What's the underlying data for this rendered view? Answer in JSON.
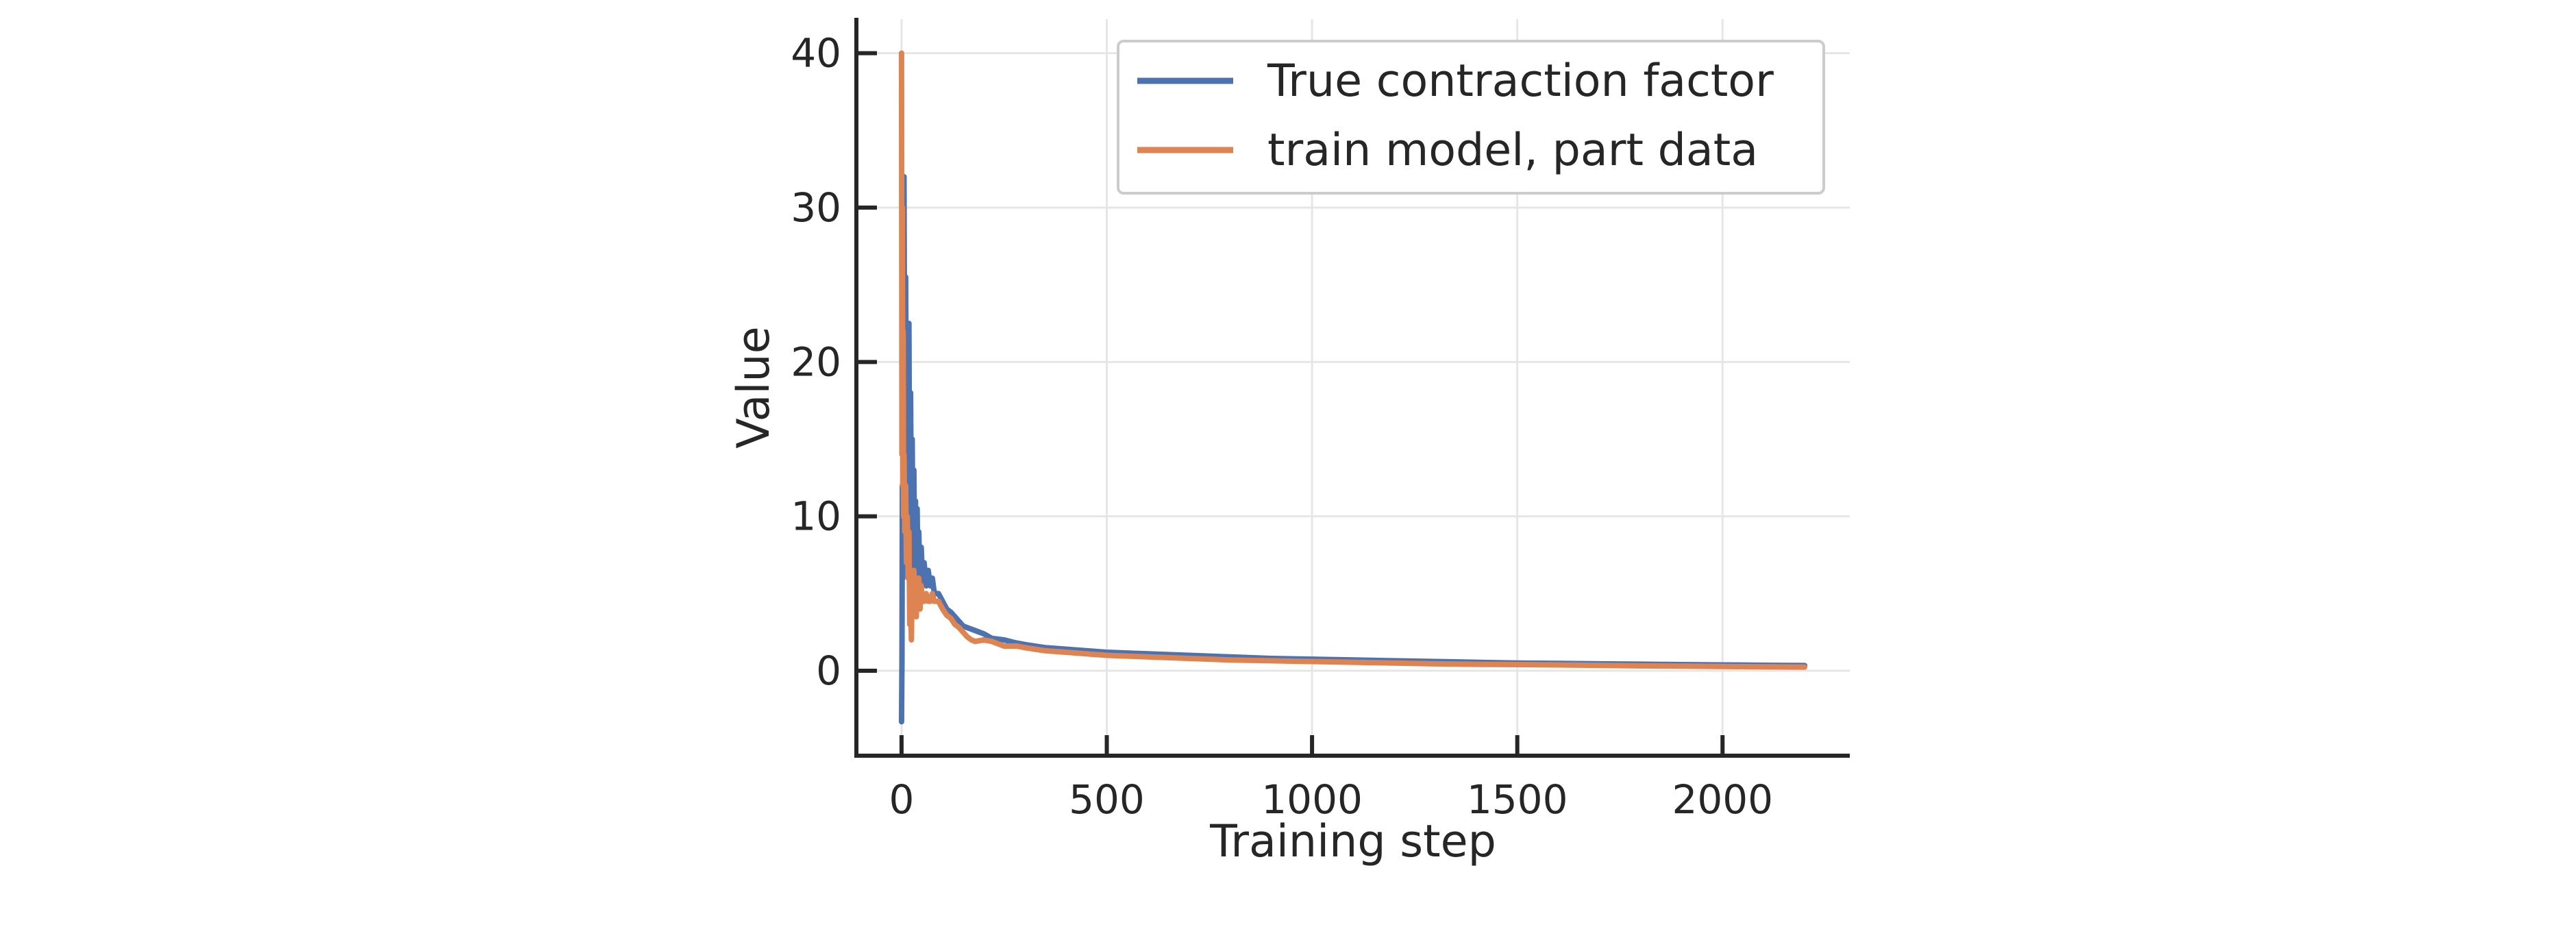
{
  "chart_data": {
    "type": "line",
    "title": "",
    "xlabel": "Training step",
    "ylabel": "Value",
    "xlim": [
      -110,
      2310
    ],
    "ylim": [
      -5.5,
      42.2
    ],
    "x_ticks": [
      0,
      500,
      1000,
      1500,
      2000
    ],
    "x_tick_labels": [
      "0",
      "500",
      "1000",
      "1500",
      "2000"
    ],
    "y_ticks": [
      0,
      10,
      20,
      30,
      40
    ],
    "y_tick_labels": [
      "0",
      "10",
      "20",
      "30",
      "40"
    ],
    "grid": true,
    "legend_position": "top-right",
    "series": [
      {
        "name": "True contraction factor",
        "color": "#4c72b0",
        "x": [
          0,
          1,
          2,
          3,
          4,
          5,
          6,
          8,
          10,
          12,
          14,
          16,
          18,
          20,
          22,
          24,
          26,
          28,
          30,
          32,
          34,
          36,
          38,
          40,
          42,
          45,
          48,
          50,
          55,
          60,
          65,
          70,
          75,
          80,
          90,
          100,
          110,
          120,
          130,
          140,
          150,
          160,
          170,
          180,
          200,
          220,
          250,
          280,
          300,
          350,
          400,
          450,
          500,
          550,
          600,
          650,
          700,
          800,
          900,
          1000,
          1100,
          1200,
          1300,
          1400,
          1500,
          1600,
          1700,
          1800,
          1900,
          2000,
          2100,
          2200
        ],
        "values": [
          -3.3,
          0.5,
          12.0,
          6.0,
          20.0,
          9.0,
          32.0,
          14.0,
          25.5,
          13.0,
          21.0,
          10.0,
          22.5,
          8.0,
          18.0,
          9.0,
          15.0,
          6.5,
          13.0,
          7.0,
          11.0,
          5.5,
          10.5,
          6.0,
          9.0,
          5.0,
          8.0,
          6.5,
          7.0,
          5.5,
          6.5,
          5.5,
          6.0,
          5.0,
          5.0,
          4.5,
          4.0,
          3.8,
          3.5,
          3.2,
          2.9,
          2.8,
          2.7,
          2.6,
          2.4,
          2.1,
          2.0,
          1.8,
          1.7,
          1.5,
          1.4,
          1.3,
          1.2,
          1.15,
          1.1,
          1.05,
          1.0,
          0.9,
          0.8,
          0.75,
          0.7,
          0.65,
          0.6,
          0.55,
          0.5,
          0.48,
          0.45,
          0.43,
          0.4,
          0.38,
          0.36,
          0.34
        ]
      },
      {
        "name": "train model, part data",
        "color": "#dd8452",
        "x": [
          0,
          1,
          2,
          3,
          4,
          5,
          6,
          8,
          10,
          12,
          14,
          16,
          18,
          20,
          22,
          24,
          26,
          28,
          30,
          32,
          34,
          36,
          38,
          40,
          42,
          45,
          48,
          50,
          55,
          60,
          65,
          70,
          75,
          80,
          90,
          100,
          110,
          120,
          130,
          140,
          150,
          160,
          170,
          180,
          200,
          220,
          250,
          280,
          300,
          350,
          400,
          450,
          500,
          550,
          600,
          650,
          700,
          800,
          900,
          1000,
          1100,
          1200,
          1300,
          1400,
          1500,
          1600,
          1700,
          1800,
          1900,
          2000,
          2100,
          2200
        ],
        "values": [
          40.0,
          14.0,
          30.0,
          12.0,
          22.0,
          10.0,
          14.0,
          9.0,
          12.0,
          7.0,
          10.0,
          6.0,
          9.0,
          3.0,
          5.0,
          2.0,
          6.0,
          4.0,
          6.5,
          4.0,
          5.0,
          3.5,
          6.0,
          5.0,
          6.0,
          4.0,
          5.5,
          4.5,
          4.5,
          5.0,
          4.5,
          4.5,
          5.0,
          4.5,
          4.5,
          4.0,
          3.6,
          3.4,
          3.0,
          2.8,
          2.5,
          2.2,
          2.0,
          1.9,
          2.0,
          1.9,
          1.6,
          1.6,
          1.5,
          1.3,
          1.2,
          1.1,
          1.0,
          0.95,
          0.9,
          0.85,
          0.8,
          0.7,
          0.65,
          0.6,
          0.55,
          0.5,
          0.45,
          0.42,
          0.4,
          0.38,
          0.35,
          0.32,
          0.3,
          0.28,
          0.26,
          0.24
        ]
      }
    ]
  }
}
